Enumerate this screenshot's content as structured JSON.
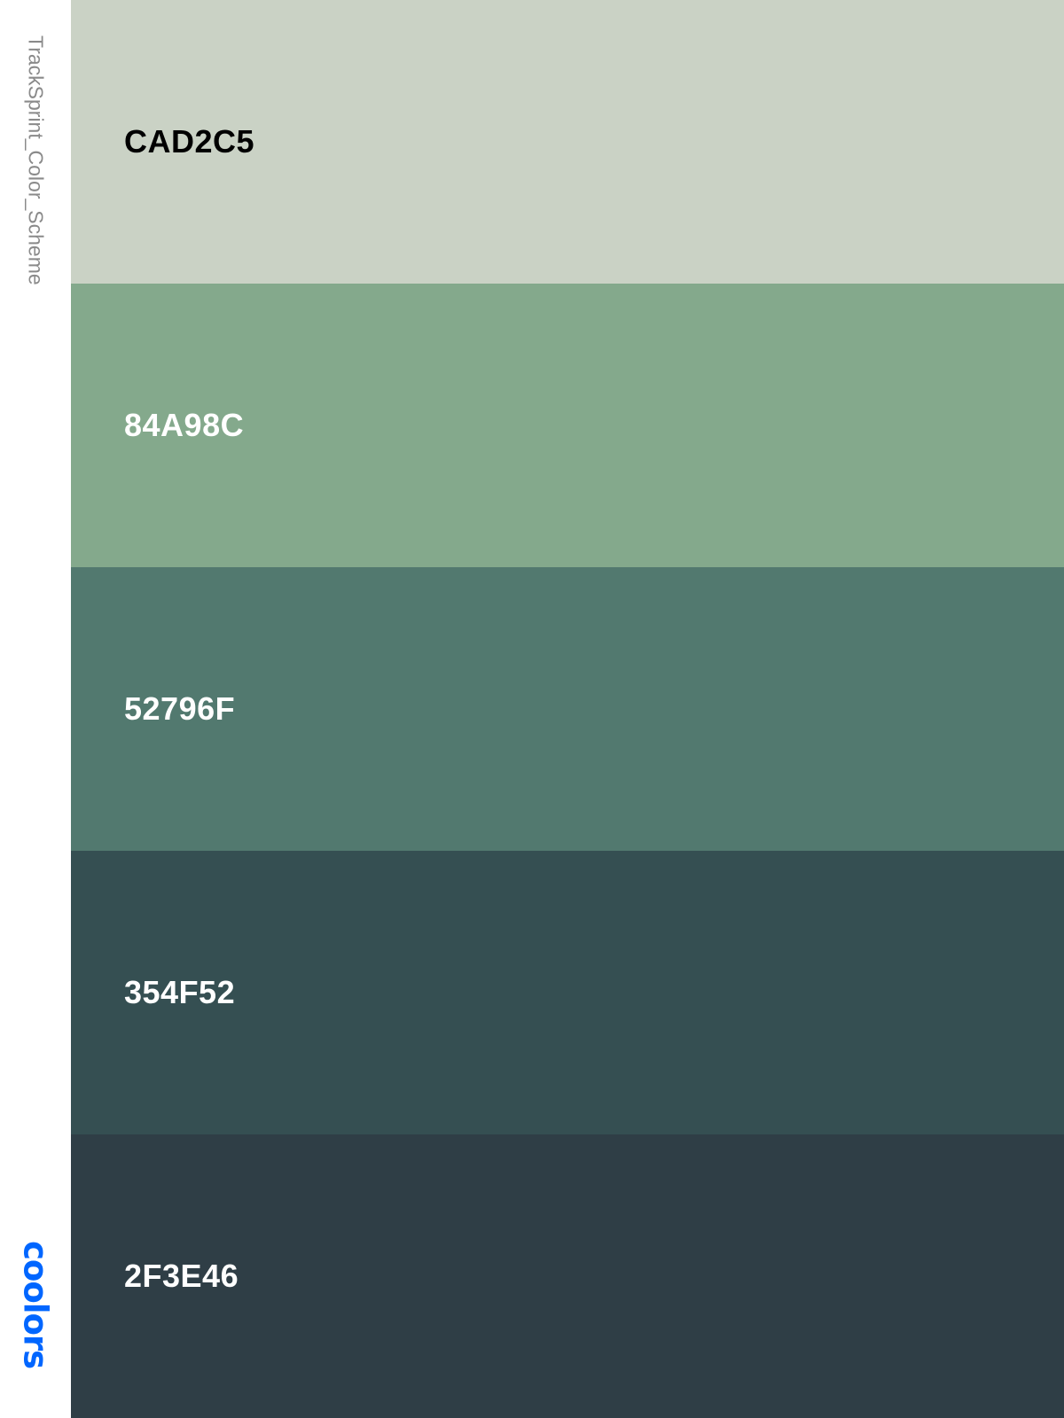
{
  "palette": {
    "title": "TrackSprint_Color_Scheme"
  },
  "brand": {
    "logo_text": "coolors",
    "color": "#0066FF"
  },
  "swatches": [
    {
      "hex": "CAD2C5",
      "color": "#CAD2C5",
      "text_color": "#000000"
    },
    {
      "hex": "84A98C",
      "color": "#84A98C",
      "text_color": "#FFFFFF"
    },
    {
      "hex": "52796F",
      "color": "#52796F",
      "text_color": "#FFFFFF"
    },
    {
      "hex": "354F52",
      "color": "#354F52",
      "text_color": "#FFFFFF"
    },
    {
      "hex": "2F3E46",
      "color": "#2F3E46",
      "text_color": "#FFFFFF"
    }
  ]
}
